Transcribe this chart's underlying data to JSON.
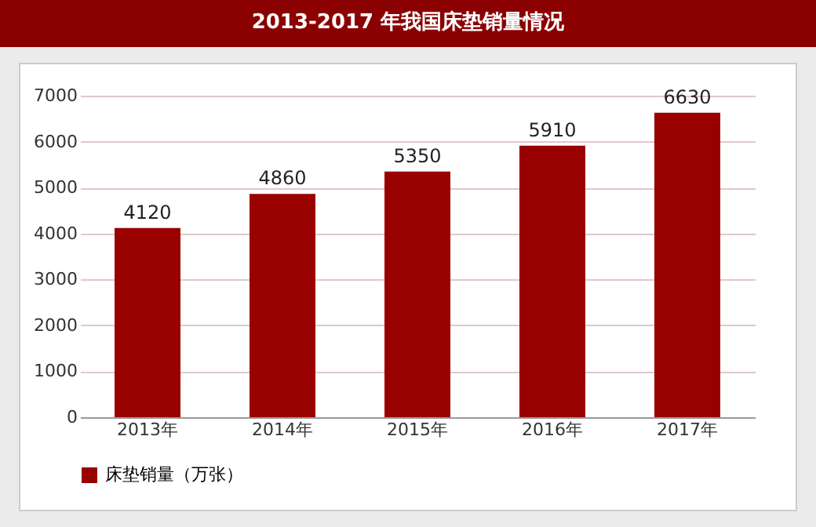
{
  "chart_data": {
    "type": "bar",
    "title": "2013-2017 年我国床垫销量情况",
    "categories": [
      "2013年",
      "2014年",
      "2015年",
      "2016年",
      "2017年"
    ],
    "series": [
      {
        "name": "床垫销量（万张）",
        "color": "#990000",
        "values": [
          4120,
          4860,
          5350,
          5910,
          6630
        ]
      }
    ],
    "ylim": [
      0,
      7000
    ],
    "yticks": [
      0,
      1000,
      2000,
      3000,
      4000,
      5000,
      6000,
      7000
    ],
    "grid": "y",
    "legend": "bottom",
    "data_labels": true
  }
}
